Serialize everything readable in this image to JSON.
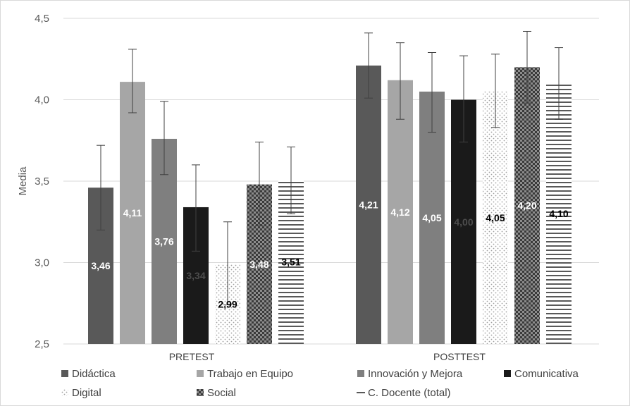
{
  "chart_data": {
    "type": "bar",
    "title": "",
    "xlabel": "",
    "ylabel": "Media",
    "ylim": [
      2.5,
      4.5
    ],
    "yticks": [
      "2,5",
      "3,0",
      "3,5",
      "4,0",
      "4,5"
    ],
    "ytick_values": [
      2.5,
      3.0,
      3.5,
      4.0,
      4.5
    ],
    "grid": true,
    "legend_position": "bottom",
    "categories": [
      "PRETEST",
      "POSTTEST"
    ],
    "series": [
      {
        "name": "Didáctica",
        "values": [
          3.46,
          4.21
        ],
        "labels": [
          "3,46",
          "4,21"
        ],
        "err_low": [
          3.2,
          4.01
        ],
        "err_high": [
          3.72,
          4.41
        ],
        "color": "#595959",
        "pattern": "solid",
        "label_color": "#ffffff"
      },
      {
        "name": "Trabajo en Equipo",
        "values": [
          4.11,
          4.12
        ],
        "labels": [
          "4,11",
          "4,12"
        ],
        "err_low": [
          3.92,
          3.88
        ],
        "err_high": [
          4.31,
          4.35
        ],
        "color": "#a6a6a6",
        "pattern": "solid",
        "label_color": "#ffffff"
      },
      {
        "name": "Innovación y Mejora",
        "values": [
          3.76,
          4.05
        ],
        "labels": [
          "3,76",
          "4,05"
        ],
        "err_low": [
          3.54,
          3.8
        ],
        "err_high": [
          3.99,
          4.29
        ],
        "color": "#7f7f7f",
        "pattern": "solid",
        "label_color": "#ffffff"
      },
      {
        "name": "Comunicativa",
        "values": [
          3.34,
          4.0
        ],
        "labels": [
          "3,34",
          "4,00"
        ],
        "err_low": [
          3.07,
          3.74
        ],
        "err_high": [
          3.6,
          4.27
        ],
        "color": "#1a1a1a",
        "pattern": "solid",
        "label_color": "#4d4d4d"
      },
      {
        "name": "Digital",
        "values": [
          2.99,
          4.05
        ],
        "labels": [
          "2,99",
          "4,05"
        ],
        "err_low": [
          2.74,
          3.83
        ],
        "err_high": [
          3.25,
          4.28
        ],
        "color": "#b3b3b3",
        "pattern": "dots",
        "label_color": "#000000"
      },
      {
        "name": "Social",
        "values": [
          3.48,
          4.2
        ],
        "labels": [
          "3,48",
          "4,20"
        ],
        "err_low": [
          3.23,
          3.98
        ],
        "err_high": [
          3.74,
          4.42
        ],
        "color": "#5a5a5a",
        "pattern": "checker",
        "label_color": "#ffffff"
      },
      {
        "name": "C. Docente (total)",
        "values": [
          3.51,
          4.1
        ],
        "labels": [
          "3,51",
          "4,10"
        ],
        "err_low": [
          3.3,
          3.88
        ],
        "err_high": [
          3.71,
          4.32
        ],
        "color": "#595959",
        "pattern": "hlines",
        "label_color": "#000000"
      }
    ]
  }
}
